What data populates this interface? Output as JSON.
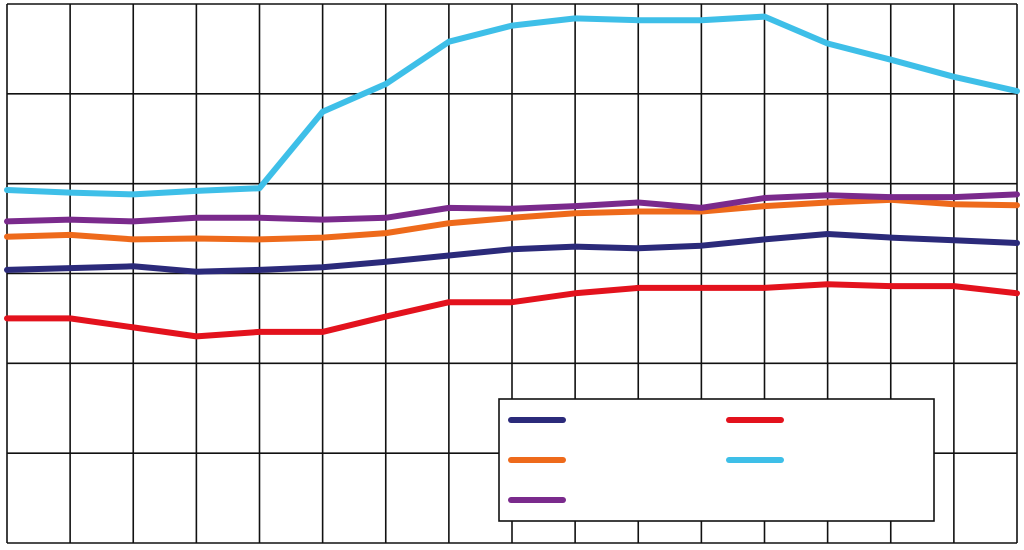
{
  "chart_data": {
    "type": "line",
    "title": "",
    "xlabel": "",
    "ylabel": "",
    "x": [
      0,
      1,
      2,
      3,
      4,
      5,
      6,
      7,
      8,
      9,
      10,
      11,
      12,
      13,
      14,
      15,
      16
    ],
    "xlim": [
      0,
      16
    ],
    "ylim": [
      0,
      6
    ],
    "grid": true,
    "legend_position": "bottom-right",
    "series": [
      {
        "color": "#2b2a7a",
        "values": [
          3.04,
          3.06,
          3.08,
          3.02,
          3.04,
          3.07,
          3.13,
          3.2,
          3.27,
          3.3,
          3.28,
          3.31,
          3.38,
          3.44,
          3.4,
          3.37,
          3.34
        ]
      },
      {
        "color": "#e3121d",
        "values": [
          2.5,
          2.5,
          2.4,
          2.3,
          2.35,
          2.35,
          2.52,
          2.68,
          2.68,
          2.78,
          2.84,
          2.84,
          2.84,
          2.88,
          2.86,
          2.86,
          2.78
        ]
      },
      {
        "color": "#ee6a1b",
        "values": [
          3.41,
          3.43,
          3.38,
          3.39,
          3.38,
          3.4,
          3.45,
          3.56,
          3.62,
          3.67,
          3.69,
          3.69,
          3.75,
          3.79,
          3.82,
          3.77,
          3.76
        ]
      },
      {
        "color": "#3ebfe8",
        "values": [
          3.93,
          3.9,
          3.88,
          3.92,
          3.95,
          4.8,
          5.11,
          5.58,
          5.76,
          5.84,
          5.82,
          5.82,
          5.86,
          5.56,
          5.38,
          5.19,
          5.03
        ]
      },
      {
        "color": "#7a2a8c",
        "values": [
          3.58,
          3.6,
          3.58,
          3.62,
          3.62,
          3.6,
          3.62,
          3.73,
          3.72,
          3.75,
          3.79,
          3.73,
          3.84,
          3.87,
          3.85,
          3.85,
          3.88
        ]
      }
    ]
  }
}
